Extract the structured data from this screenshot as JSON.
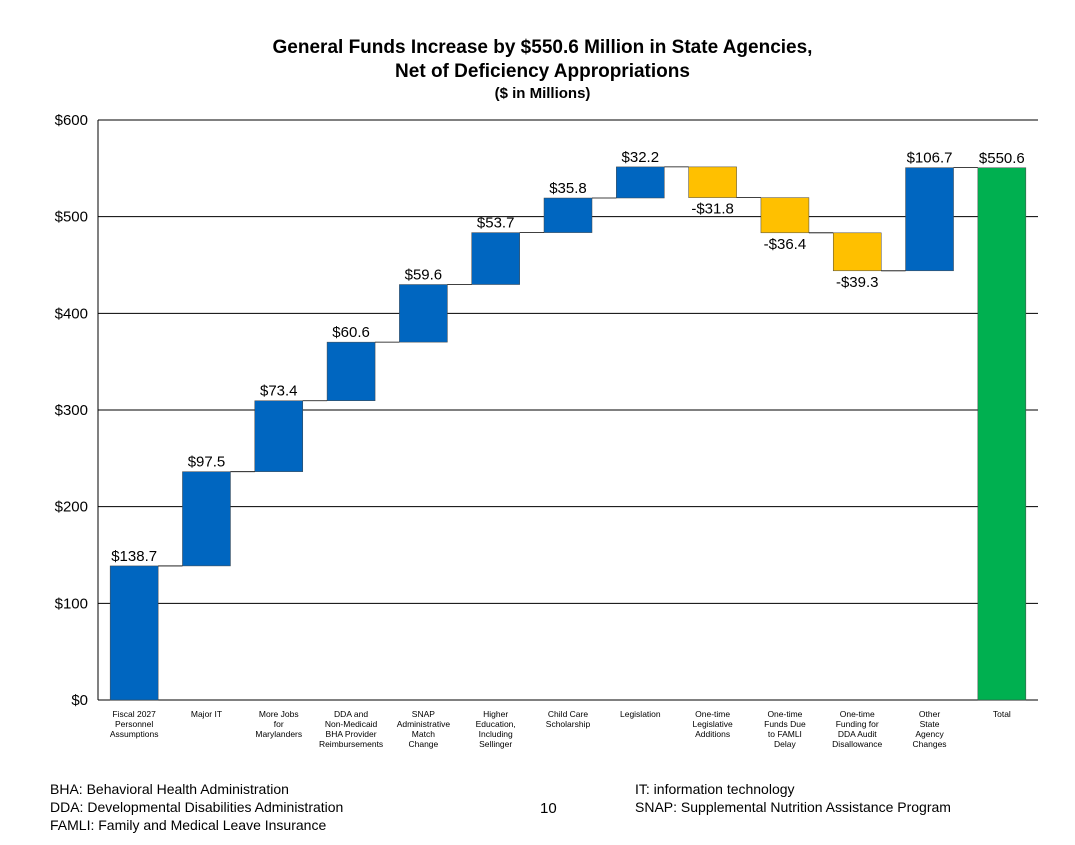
{
  "chart_data": {
    "type": "waterfall",
    "title": "General Funds Increase by $550.6 Million in State Agencies,",
    "title_line2": "Net of Deficiency Appropriations",
    "subtitle": "($ in Millions)",
    "ylim": [
      0,
      600
    ],
    "yticks": [
      0,
      100,
      200,
      300,
      400,
      500,
      600
    ],
    "ytick_labels": [
      "$0",
      "$100",
      "$200",
      "$300",
      "$400",
      "$500",
      "$600"
    ],
    "grid": true,
    "steps": [
      {
        "category": [
          "Fiscal 2027",
          "Personnel",
          "Assumptions"
        ],
        "value": 138.7,
        "label": "$138.7",
        "kind": "increase"
      },
      {
        "category": [
          "Major IT"
        ],
        "value": 97.5,
        "label": "$97.5",
        "kind": "increase"
      },
      {
        "category": [
          "More Jobs",
          "for",
          "Marylanders"
        ],
        "value": 73.4,
        "label": "$73.4",
        "kind": "increase"
      },
      {
        "category": [
          "DDA and",
          "Non-Medicaid",
          "BHA Provider",
          "Reimbursements"
        ],
        "value": 60.6,
        "label": "$60.6",
        "kind": "increase"
      },
      {
        "category": [
          "SNAP",
          "Administrative",
          "Match",
          "Change"
        ],
        "value": 59.6,
        "label": "$59.6",
        "kind": "increase"
      },
      {
        "category": [
          "Higher",
          "Education,",
          "Including",
          "Sellinger"
        ],
        "value": 53.7,
        "label": "$53.7",
        "kind": "increase"
      },
      {
        "category": [
          "Child Care",
          "Scholarship"
        ],
        "value": 35.8,
        "label": "$35.8",
        "kind": "increase"
      },
      {
        "category": [
          "Legislation"
        ],
        "value": 32.2,
        "label": "$32.2",
        "kind": "increase"
      },
      {
        "category": [
          "One-time",
          "Legislative",
          "Additions"
        ],
        "value": -31.8,
        "label": "-$31.8",
        "kind": "decrease"
      },
      {
        "category": [
          "One-time",
          "Funds Due",
          "to FAMLI",
          "Delay"
        ],
        "value": -36.4,
        "label": "-$36.4",
        "kind": "decrease"
      },
      {
        "category": [
          "One-time",
          "Funding for",
          "DDA Audit",
          "Disallowance"
        ],
        "value": -39.3,
        "label": "-$39.3",
        "kind": "decrease"
      },
      {
        "category": [
          "Other",
          "State",
          "Agency",
          "Changes"
        ],
        "value": 106.7,
        "label": "$106.7",
        "kind": "increase"
      },
      {
        "category": [
          "Total"
        ],
        "value": 550.6,
        "label": "$550.6",
        "kind": "total"
      }
    ],
    "colors": {
      "increase": "#0066c0",
      "decrease": "#ffc000",
      "total": "#00b050",
      "grid": "#000000"
    }
  },
  "footer": {
    "left": [
      "BHA:  Behavioral Health Administration",
      "DDA:  Developmental Disabilities Administration",
      "FAMLI:  Family and Medical Leave Insurance"
    ],
    "right": [
      "IT:  information technology",
      "SNAP:  Supplemental Nutrition Assistance Program"
    ],
    "page_number": "10"
  }
}
